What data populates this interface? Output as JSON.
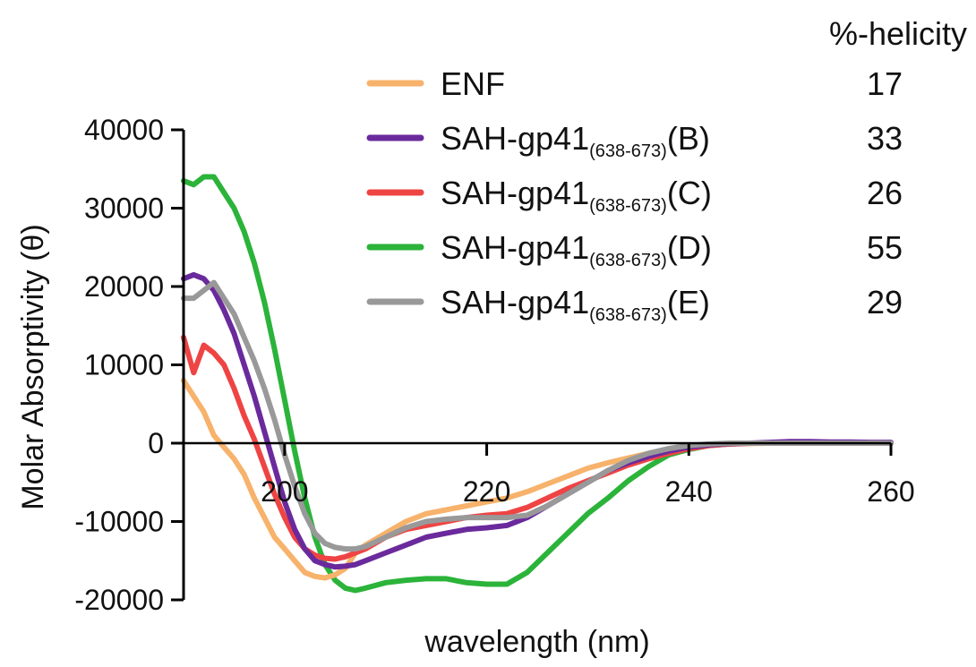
{
  "chart_data": {
    "type": "line",
    "xlabel": "wavelength (nm)",
    "ylabel": "Molar Absorptivity (θ)",
    "xlim": [
      190,
      260
    ],
    "ylim": [
      -20000,
      40000
    ],
    "x_ticks": [
      "200",
      "220",
      "240",
      "260"
    ],
    "y_ticks": [
      "40000",
      "30000",
      "20000",
      "10000",
      "0",
      "-10000",
      "-20000"
    ],
    "table_header": "%-helicity",
    "series": [
      {
        "name": "ENF",
        "name_base": "ENF",
        "name_sub": "",
        "name_suffix": "",
        "helicity": "17",
        "color": "#F7B26B",
        "x": [
          190,
          191,
          192,
          193,
          194,
          195,
          196,
          197,
          198,
          199,
          200,
          201,
          202,
          203,
          204,
          205,
          206,
          207,
          208,
          210,
          212,
          214,
          216,
          218,
          220,
          222,
          224,
          226,
          228,
          230,
          232,
          234,
          236,
          238,
          240,
          242,
          244,
          246,
          248,
          250,
          252,
          254,
          256,
          258,
          260
        ],
        "y": [
          8000,
          6000,
          4000,
          1000,
          -500,
          -2000,
          -4000,
          -7000,
          -9500,
          -12000,
          -13500,
          -15000,
          -16500,
          -17000,
          -17200,
          -16800,
          -16000,
          -14000,
          -13000,
          -11500,
          -10000,
          -9000,
          -8500,
          -8000,
          -7500,
          -7000,
          -6200,
          -5200,
          -4200,
          -3200,
          -2500,
          -1900,
          -1300,
          -800,
          -400,
          -200,
          -100,
          -50,
          0,
          0,
          0,
          0,
          0,
          0,
          0
        ]
      },
      {
        "name": "SAH-gp41(638-673)(B)",
        "name_base": "SAH-gp41",
        "name_sub": "(638-673)",
        "name_suffix": "(B)",
        "helicity": "33",
        "color": "#6A2A9C",
        "x": [
          190,
          191,
          192,
          193,
          194,
          195,
          196,
          197,
          198,
          199,
          200,
          201,
          202,
          203,
          204,
          205,
          206,
          207,
          208,
          210,
          212,
          214,
          216,
          218,
          220,
          222,
          224,
          226,
          228,
          230,
          232,
          234,
          236,
          238,
          240,
          242,
          244,
          246,
          248,
          250,
          252,
          254,
          256,
          258,
          260
        ],
        "y": [
          21000,
          21500,
          21000,
          19500,
          17000,
          14000,
          10000,
          6000,
          1500,
          -3000,
          -7500,
          -11000,
          -13500,
          -15000,
          -15500,
          -15800,
          -15700,
          -15500,
          -15000,
          -14000,
          -13000,
          -12000,
          -11500,
          -11000,
          -10800,
          -10500,
          -9500,
          -8000,
          -6500,
          -5000,
          -3500,
          -2500,
          -1700,
          -1000,
          -500,
          -200,
          -50,
          0,
          100,
          200,
          200,
          150,
          150,
          100,
          100
        ]
      },
      {
        "name": "SAH-gp41(638-673)(C)",
        "name_base": "SAH-gp41",
        "name_sub": "(638-673)",
        "name_suffix": "(C)",
        "helicity": "26",
        "color": "#EF4444",
        "x": [
          190,
          191,
          192,
          193,
          194,
          195,
          196,
          197,
          198,
          199,
          200,
          201,
          202,
          203,
          204,
          205,
          206,
          207,
          208,
          210,
          212,
          214,
          216,
          218,
          220,
          222,
          224,
          226,
          228,
          230,
          232,
          234,
          236,
          238,
          240,
          242,
          244,
          246,
          248,
          250,
          252,
          254,
          256,
          258,
          260
        ],
        "y": [
          13500,
          9000,
          12500,
          11500,
          10000,
          7000,
          3500,
          500,
          -3000,
          -6500,
          -9500,
          -12000,
          -13500,
          -14300,
          -14700,
          -14800,
          -14500,
          -14000,
          -13500,
          -12000,
          -11000,
          -10500,
          -10000,
          -9500,
          -9200,
          -9000,
          -8200,
          -7000,
          -5800,
          -4800,
          -3800,
          -2800,
          -2000,
          -1300,
          -700,
          -300,
          -100,
          0,
          0,
          0,
          0,
          0,
          0,
          0,
          0
        ]
      },
      {
        "name": "SAH-gp41(638-673)(D)",
        "name_base": "SAH-gp41",
        "name_sub": "(638-673)",
        "name_suffix": "(D)",
        "helicity": "55",
        "color": "#2BB33A",
        "x": [
          190,
          191,
          192,
          193,
          194,
          195,
          196,
          197,
          198,
          199,
          200,
          201,
          202,
          203,
          204,
          205,
          206,
          207,
          208,
          210,
          212,
          214,
          216,
          218,
          220,
          222,
          224,
          226,
          228,
          230,
          232,
          234,
          236,
          238,
          240,
          242,
          244,
          246,
          248,
          250,
          252,
          254,
          256,
          258,
          260
        ],
        "y": [
          33500,
          33000,
          34000,
          34000,
          32000,
          30000,
          27000,
          23000,
          18000,
          12000,
          5500,
          -1000,
          -7000,
          -12000,
          -15500,
          -17500,
          -18500,
          -18800,
          -18500,
          -17800,
          -17500,
          -17300,
          -17300,
          -17800,
          -18000,
          -18000,
          -16500,
          -14000,
          -11500,
          -9000,
          -7000,
          -4800,
          -3000,
          -1500,
          -800,
          -300,
          -100,
          0,
          0,
          0,
          0,
          0,
          0,
          0,
          0
        ]
      },
      {
        "name": "SAH-gp41(638-673)(E)",
        "name_base": "SAH-gp41",
        "name_sub": "(638-673)",
        "name_suffix": "(E)",
        "helicity": "29",
        "color": "#999999",
        "x": [
          190,
          191,
          192,
          193,
          194,
          195,
          196,
          197,
          198,
          199,
          200,
          201,
          202,
          203,
          204,
          205,
          206,
          207,
          208,
          210,
          212,
          214,
          216,
          218,
          220,
          222,
          224,
          226,
          228,
          230,
          232,
          234,
          236,
          238,
          240,
          242,
          244,
          246,
          248,
          250,
          252,
          254,
          256,
          258,
          260
        ],
        "y": [
          18500,
          18500,
          19500,
          20500,
          18500,
          16500,
          13500,
          10500,
          7000,
          3000,
          -1500,
          -5500,
          -9000,
          -11500,
          -12800,
          -13300,
          -13500,
          -13500,
          -13200,
          -12000,
          -10800,
          -10000,
          -9700,
          -9500,
          -9500,
          -9500,
          -9200,
          -8000,
          -6500,
          -5000,
          -3500,
          -2200,
          -1300,
          -700,
          -300,
          -100,
          0,
          0,
          0,
          0,
          0,
          0,
          0,
          0,
          0
        ]
      }
    ],
    "grid": false,
    "legend_position": "top-right"
  }
}
